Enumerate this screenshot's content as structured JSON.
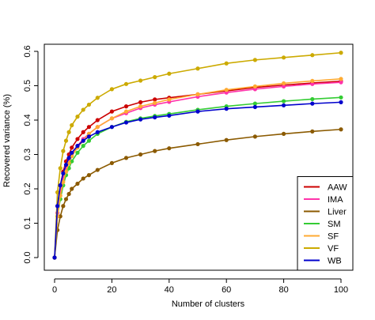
{
  "chart_data": {
    "type": "line",
    "title": "",
    "xlabel": "Number of clusters",
    "ylabel": "Recovered variance (%)",
    "xlim": [
      0,
      100
    ],
    "ylim": [
      0,
      0.6
    ],
    "xticks": [
      0,
      20,
      40,
      60,
      80,
      100
    ],
    "yticks": [
      0.0,
      0.1,
      0.2,
      0.3,
      0.4,
      0.5,
      0.6
    ],
    "xtick_labels": [
      "0",
      "20",
      "40",
      "60",
      "80",
      "100"
    ],
    "ytick_labels": [
      "0.0",
      "0.1",
      "0.2",
      "0.3",
      "0.4",
      "0.5",
      "0.6"
    ],
    "grid": false,
    "legend_position": "bottom-right",
    "marker": "filled-circle",
    "x": [
      0,
      1,
      2,
      3,
      4,
      5,
      6,
      8,
      10,
      12,
      15,
      20,
      25,
      30,
      35,
      40,
      50,
      60,
      70,
      80,
      90,
      100
    ],
    "series": [
      {
        "name": "AAW",
        "color": "#cc0000",
        "values": [
          0.0,
          0.15,
          0.21,
          0.25,
          0.28,
          0.3,
          0.32,
          0.345,
          0.365,
          0.38,
          0.4,
          0.425,
          0.44,
          0.452,
          0.46,
          0.465,
          0.475,
          0.485,
          0.495,
          0.502,
          0.508,
          0.513
        ]
      },
      {
        "name": "IMA",
        "color": "#ff33aa",
        "values": [
          0.0,
          0.13,
          0.19,
          0.23,
          0.26,
          0.28,
          0.3,
          0.325,
          0.345,
          0.36,
          0.38,
          0.405,
          0.42,
          0.435,
          0.445,
          0.453,
          0.468,
          0.48,
          0.49,
          0.498,
          0.505,
          0.51
        ]
      },
      {
        "name": "Liver",
        "color": "#8b5a00",
        "values": [
          0.0,
          0.08,
          0.12,
          0.15,
          0.17,
          0.185,
          0.2,
          0.215,
          0.23,
          0.24,
          0.255,
          0.275,
          0.29,
          0.3,
          0.31,
          0.318,
          0.33,
          0.342,
          0.352,
          0.36,
          0.367,
          0.373
        ]
      },
      {
        "name": "SM",
        "color": "#33cc33",
        "values": [
          0.0,
          0.12,
          0.17,
          0.21,
          0.24,
          0.26,
          0.28,
          0.305,
          0.325,
          0.34,
          0.36,
          0.38,
          0.395,
          0.405,
          0.412,
          0.418,
          0.43,
          0.44,
          0.448,
          0.455,
          0.461,
          0.466
        ]
      },
      {
        "name": "SF",
        "color": "#ffaa33",
        "values": [
          0.0,
          0.12,
          0.18,
          0.22,
          0.25,
          0.275,
          0.295,
          0.32,
          0.34,
          0.36,
          0.38,
          0.405,
          0.425,
          0.44,
          0.45,
          0.46,
          0.475,
          0.488,
          0.498,
          0.507,
          0.514,
          0.52
        ]
      },
      {
        "name": "VF",
        "color": "#ccaa00",
        "values": [
          0.0,
          0.19,
          0.26,
          0.31,
          0.34,
          0.365,
          0.385,
          0.41,
          0.43,
          0.445,
          0.465,
          0.49,
          0.505,
          0.515,
          0.525,
          0.535,
          0.55,
          0.565,
          0.575,
          0.582,
          0.589,
          0.596
        ]
      },
      {
        "name": "WB",
        "color": "#0000cc",
        "values": [
          0.0,
          0.15,
          0.21,
          0.245,
          0.27,
          0.29,
          0.305,
          0.325,
          0.34,
          0.352,
          0.365,
          0.38,
          0.393,
          0.402,
          0.408,
          0.413,
          0.425,
          0.433,
          0.438,
          0.443,
          0.448,
          0.452
        ]
      }
    ]
  }
}
